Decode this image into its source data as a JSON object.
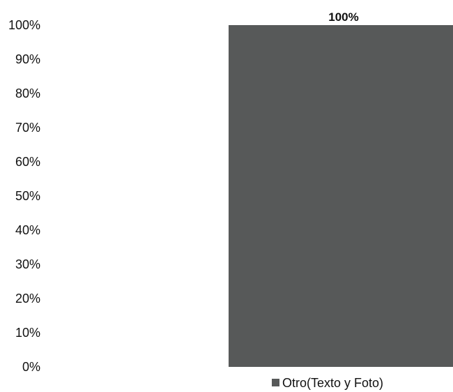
{
  "chart_data": {
    "type": "bar",
    "categories": [
      "Otro(Texto y Foto)"
    ],
    "series": [
      {
        "name": "Otro(Texto y Foto)",
        "values": [
          100
        ],
        "color": "#575959"
      }
    ],
    "value_format": "percent",
    "data_labels": [
      "100%"
    ],
    "y_ticks": [
      "0%",
      "10%",
      "20%",
      "30%",
      "40%",
      "50%",
      "60%",
      "70%",
      "80%",
      "90%",
      "100%"
    ],
    "ylim": [
      0,
      100
    ],
    "title": "",
    "xlabel": "",
    "ylabel": "",
    "grid": false,
    "legend": {
      "position": "bottom",
      "entries": [
        "Otro(Texto y Foto)"
      ]
    }
  }
}
